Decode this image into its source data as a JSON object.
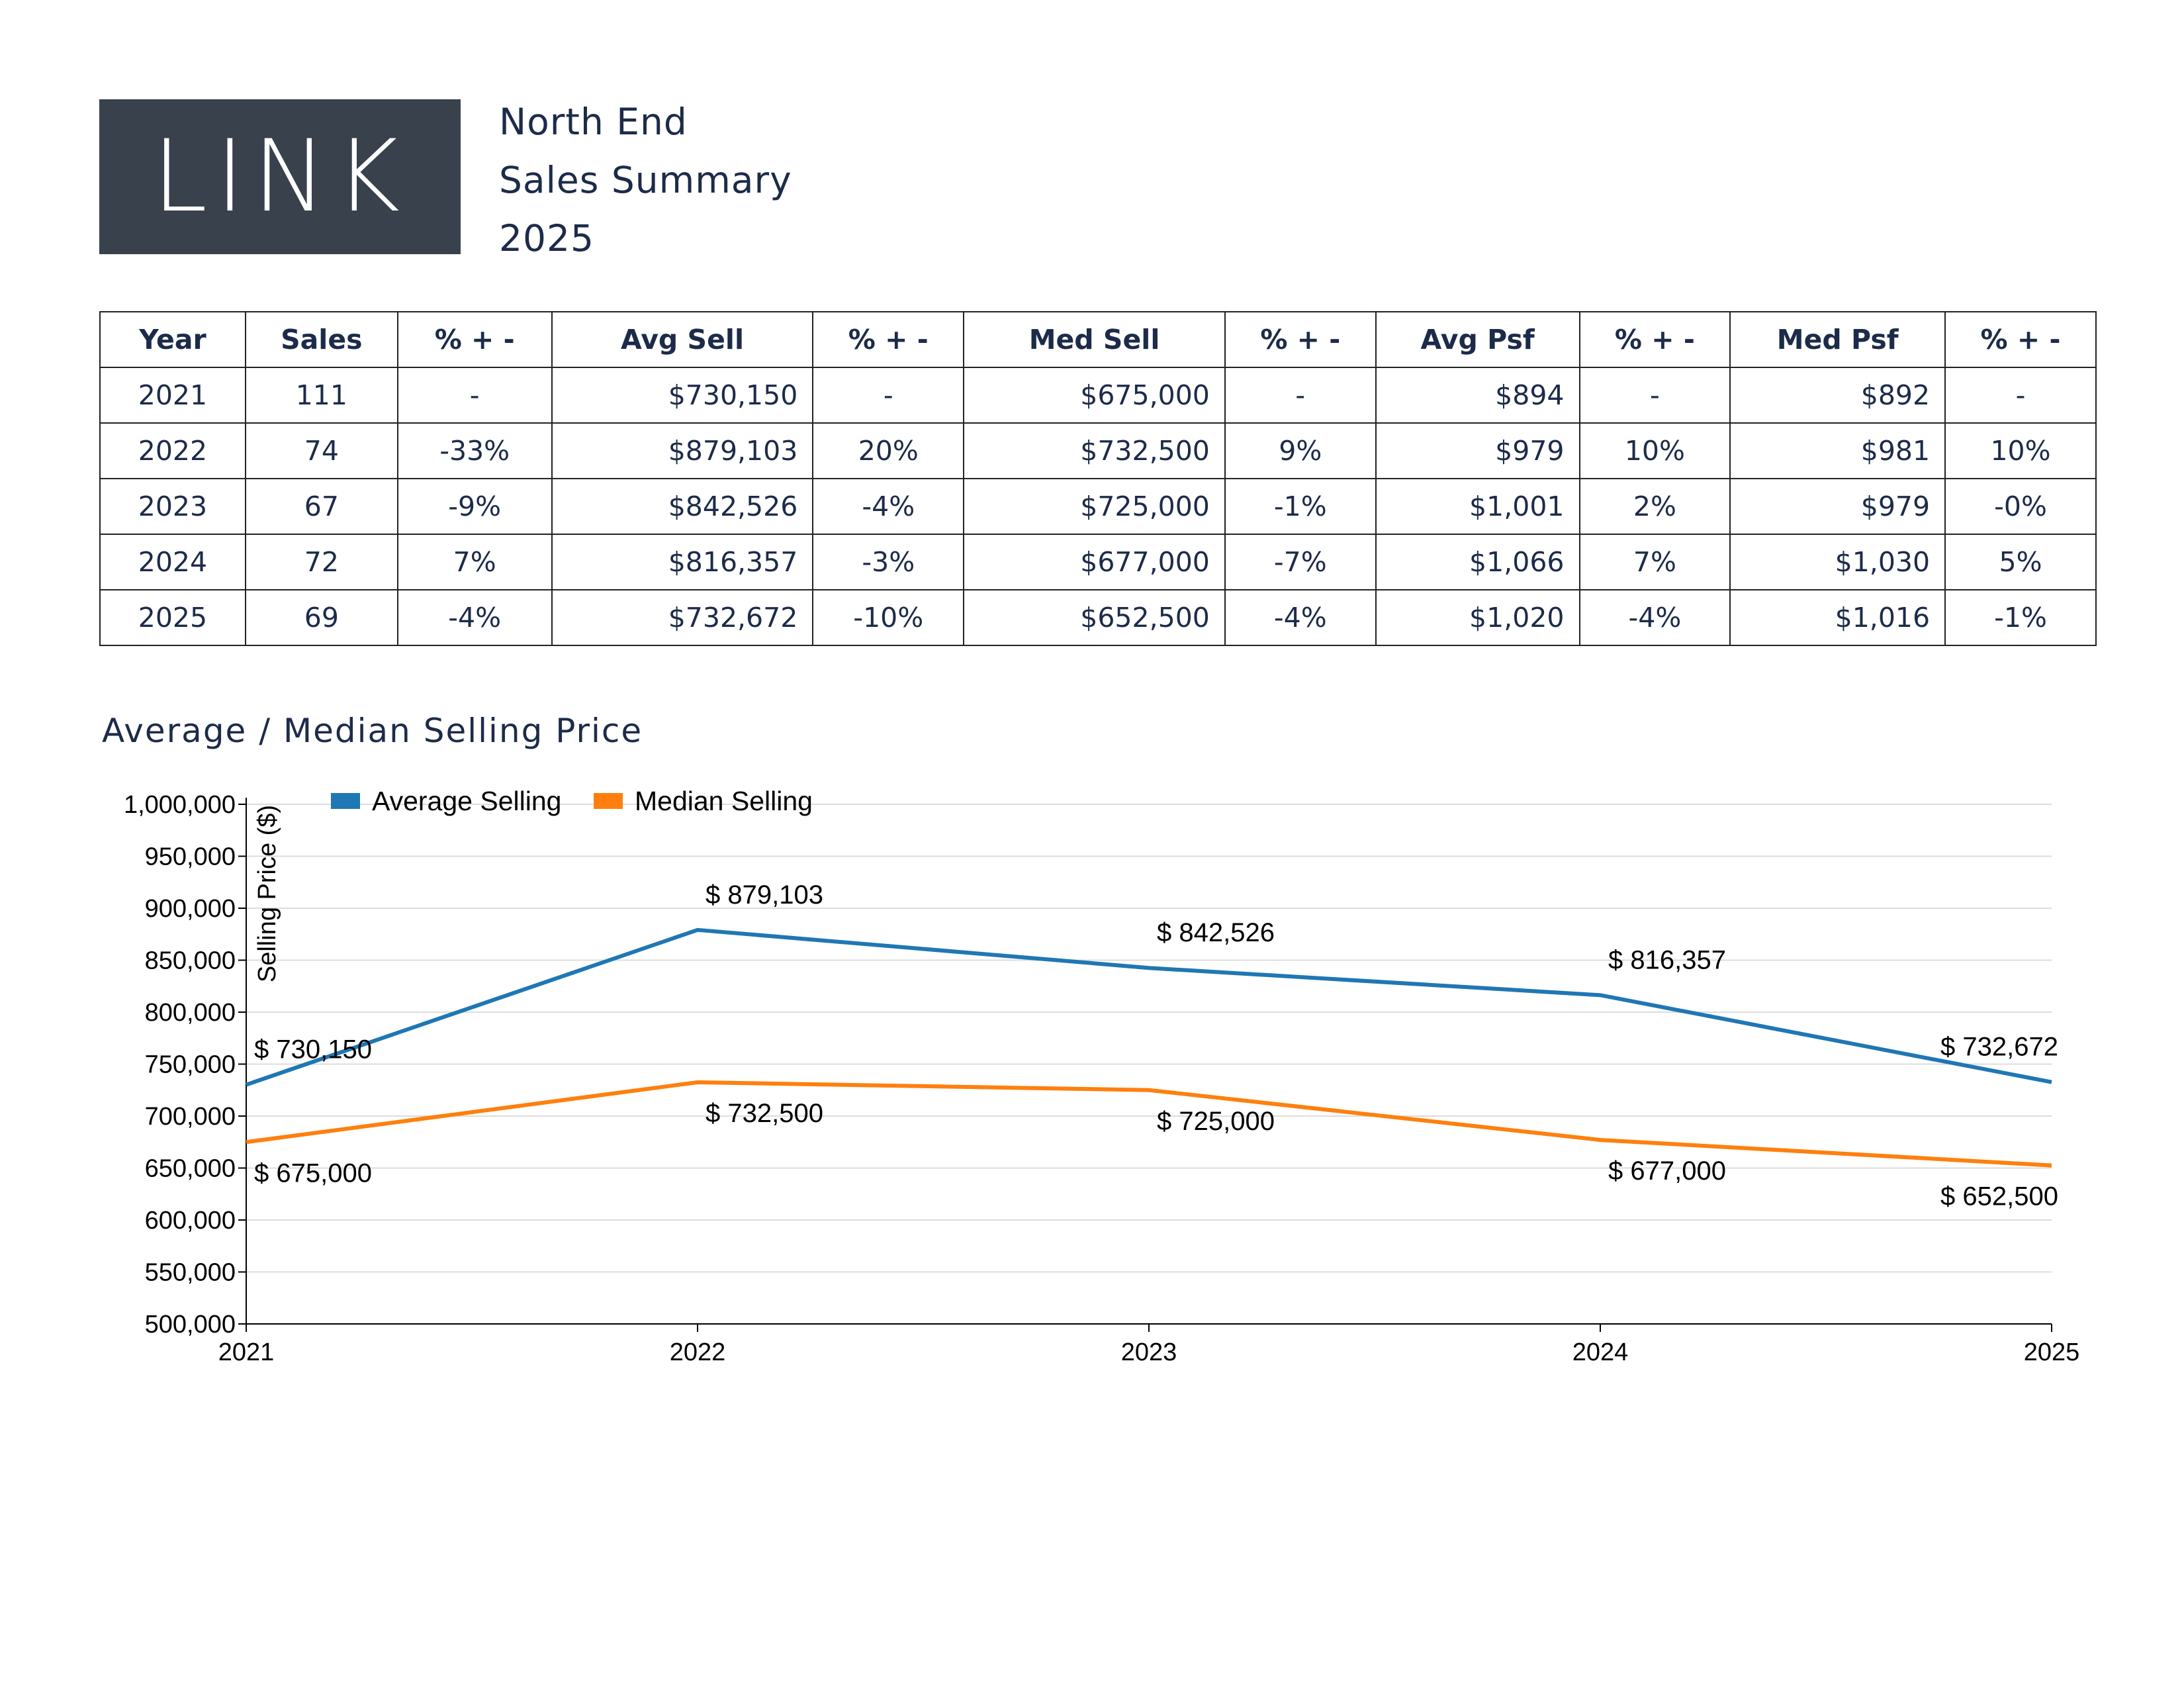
{
  "logo": {
    "text": "LINK"
  },
  "header": {
    "line1": "North End",
    "line2": "Sales Summary",
    "line3": "2025"
  },
  "table": {
    "headers": [
      "Year",
      "Sales",
      "% + -",
      "Avg Sell",
      "% + -",
      "Med Sell",
      "% + -",
      "Avg Psf",
      "% + -",
      "Med Psf",
      "% + -"
    ],
    "rows": [
      [
        "2021",
        "111",
        "-",
        "$730,150",
        "-",
        "$675,000",
        "-",
        "$894",
        "-",
        "$892",
        "-"
      ],
      [
        "2022",
        "74",
        "-33%",
        "$879,103",
        "20%",
        "$732,500",
        "9%",
        "$979",
        "10%",
        "$981",
        "10%"
      ],
      [
        "2023",
        "67",
        "-9%",
        "$842,526",
        "-4%",
        "$725,000",
        "-1%",
        "$1,001",
        "2%",
        "$979",
        "-0%"
      ],
      [
        "2024",
        "72",
        "7%",
        "$816,357",
        "-3%",
        "$677,000",
        "-7%",
        "$1,066",
        "7%",
        "$1,030",
        "5%"
      ],
      [
        "2025",
        "69",
        "-4%",
        "$732,672",
        "-10%",
        "$652,500",
        "-4%",
        "$1,020",
        "-4%",
        "$1,016",
        "-1%"
      ]
    ]
  },
  "chart_title": "Average / Median Selling Price",
  "chart_data": {
    "type": "line",
    "title": "Average / Median Selling Price",
    "ylabel": "Selling Price ($)",
    "xlabel": "",
    "x": [
      2021,
      2022,
      2023,
      2024,
      2025
    ],
    "ylim": [
      500000,
      1000000
    ],
    "yticks": [
      500000,
      550000,
      600000,
      650000,
      700000,
      750000,
      800000,
      850000,
      900000,
      950000,
      1000000
    ],
    "grid": true,
    "legend": "top-left",
    "series": [
      {
        "name": "Average Selling",
        "color": "#1f77b4",
        "values": [
          730150,
          879103,
          842526,
          816357,
          732672
        ],
        "labels": [
          "$ 730,150",
          "$ 879,103",
          "$ 842,526",
          "$ 816,357",
          "$ 732,672"
        ]
      },
      {
        "name": "Median Selling",
        "color": "#ff7f0e",
        "values": [
          675000,
          732500,
          725000,
          677000,
          652500
        ],
        "labels": [
          "$ 675,000",
          "$ 732,500",
          "$ 725,000",
          "$ 677,000",
          "$ 652,500"
        ]
      }
    ]
  }
}
